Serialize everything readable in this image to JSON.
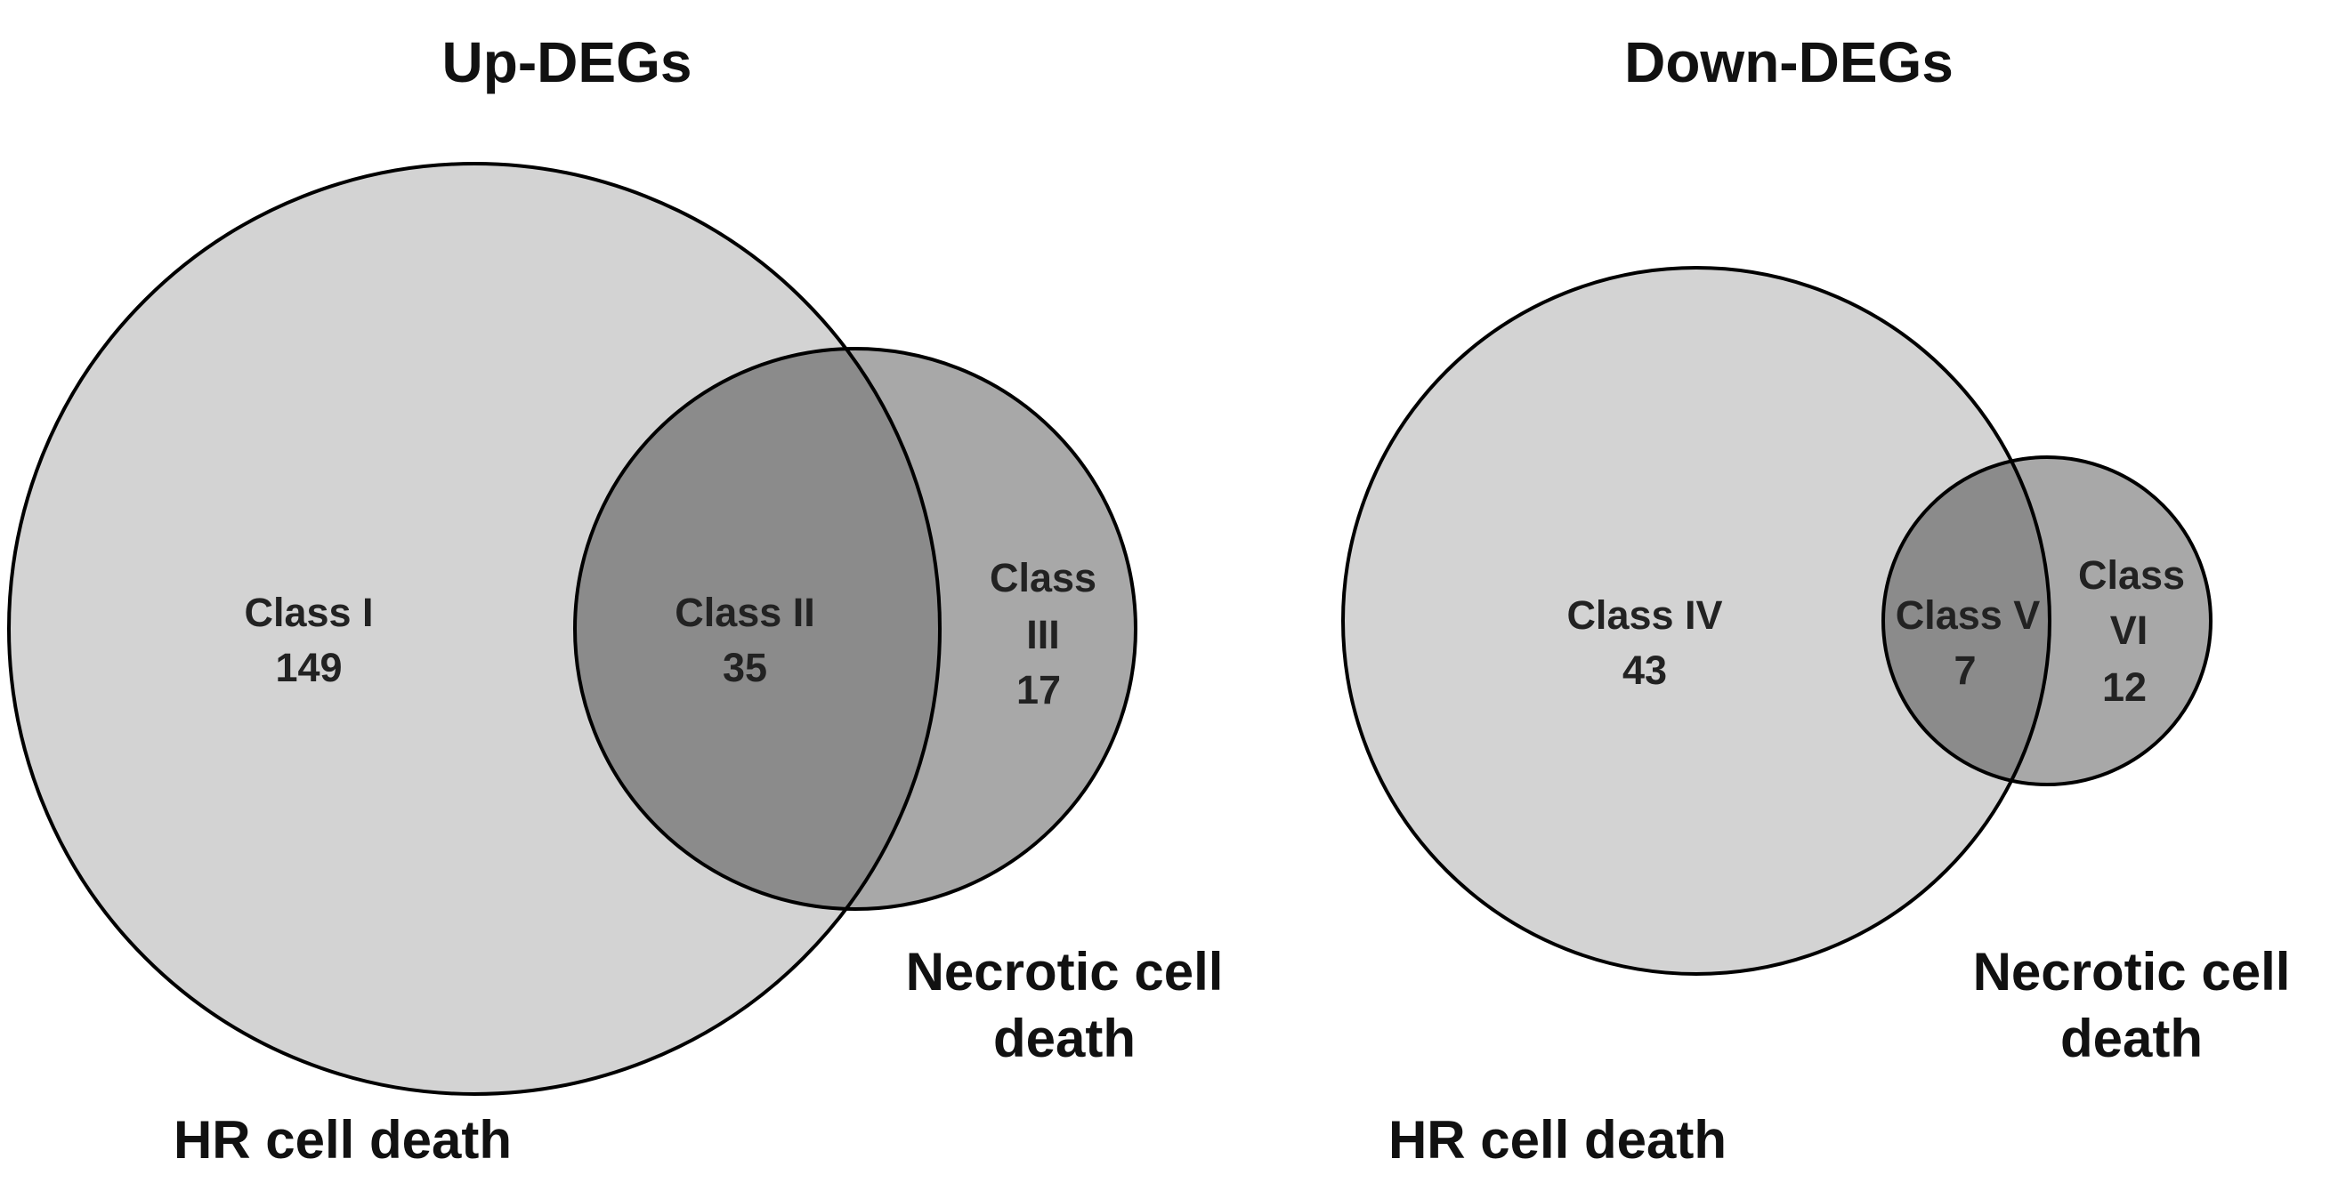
{
  "panels": [
    {
      "title": "Up-DEGs",
      "sets": [
        {
          "label": [
            "HR cell death"
          ]
        },
        {
          "label": [
            "Necrotic cell",
            "death"
          ]
        }
      ],
      "regions": [
        {
          "label": [
            "Class I"
          ],
          "count": 149
        },
        {
          "label": [
            "Class II"
          ],
          "count": 35
        },
        {
          "label": [
            "Class",
            "III"
          ],
          "count": 17
        }
      ]
    },
    {
      "title": "Down-DEGs",
      "sets": [
        {
          "label": [
            "HR cell death"
          ]
        },
        {
          "label": [
            "Necrotic cell",
            "death"
          ]
        }
      ],
      "regions": [
        {
          "label": [
            "Class IV"
          ],
          "count": 43
        },
        {
          "label": [
            "Class V"
          ],
          "count": 7
        },
        {
          "label": [
            "Class",
            "VI"
          ],
          "count": 12
        }
      ]
    }
  ]
}
